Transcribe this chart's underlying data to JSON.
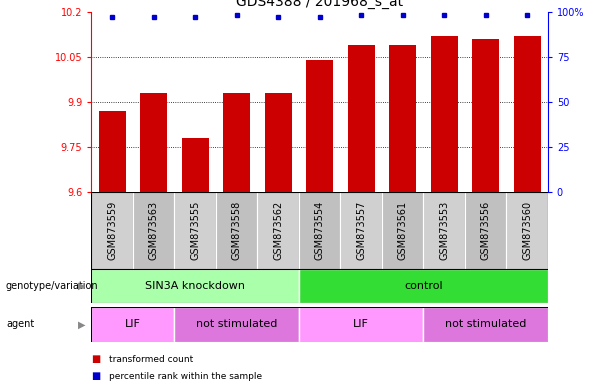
{
  "title": "GDS4388 / 201968_s_at",
  "samples": [
    "GSM873559",
    "GSM873563",
    "GSM873555",
    "GSM873558",
    "GSM873562",
    "GSM873554",
    "GSM873557",
    "GSM873561",
    "GSM873553",
    "GSM873556",
    "GSM873560"
  ],
  "bar_values": [
    9.87,
    9.93,
    9.78,
    9.93,
    9.93,
    10.04,
    10.09,
    10.09,
    10.12,
    10.11,
    10.12
  ],
  "percentile_values": [
    97,
    97,
    97,
    98,
    97,
    97,
    98,
    98,
    98,
    98,
    98
  ],
  "ylim_left": [
    9.6,
    10.2
  ],
  "ylim_right": [
    0,
    100
  ],
  "yticks_left": [
    9.6,
    9.75,
    9.9,
    10.05,
    10.2
  ],
  "yticks_right": [
    0,
    25,
    50,
    75,
    100
  ],
  "bar_color": "#cc0000",
  "dot_color": "#0000cc",
  "background_color": "#ffffff",
  "genotype_groups": [
    {
      "label": "SIN3A knockdown",
      "start": 0,
      "end": 5,
      "color": "#aaffaa"
    },
    {
      "label": "control",
      "start": 5,
      "end": 11,
      "color": "#33dd33"
    }
  ],
  "agent_groups": [
    {
      "label": "LIF",
      "start": 0,
      "end": 2,
      "color": "#ff99ff"
    },
    {
      "label": "not stimulated",
      "start": 2,
      "end": 5,
      "color": "#dd77dd"
    },
    {
      "label": "LIF",
      "start": 5,
      "end": 8,
      "color": "#ff99ff"
    },
    {
      "label": "not stimulated",
      "start": 8,
      "end": 11,
      "color": "#dd77dd"
    }
  ],
  "legend_items": [
    {
      "label": "transformed count",
      "color": "#cc0000"
    },
    {
      "label": "percentile rank within the sample",
      "color": "#0000cc"
    }
  ],
  "row_labels": [
    "genotype/variation",
    "agent"
  ],
  "title_fontsize": 10,
  "tick_fontsize": 7,
  "label_fontsize": 8,
  "sample_fontsize": 7,
  "gray_col_color": "#d0d0d0",
  "gray_col_color2": "#c0c0c0"
}
